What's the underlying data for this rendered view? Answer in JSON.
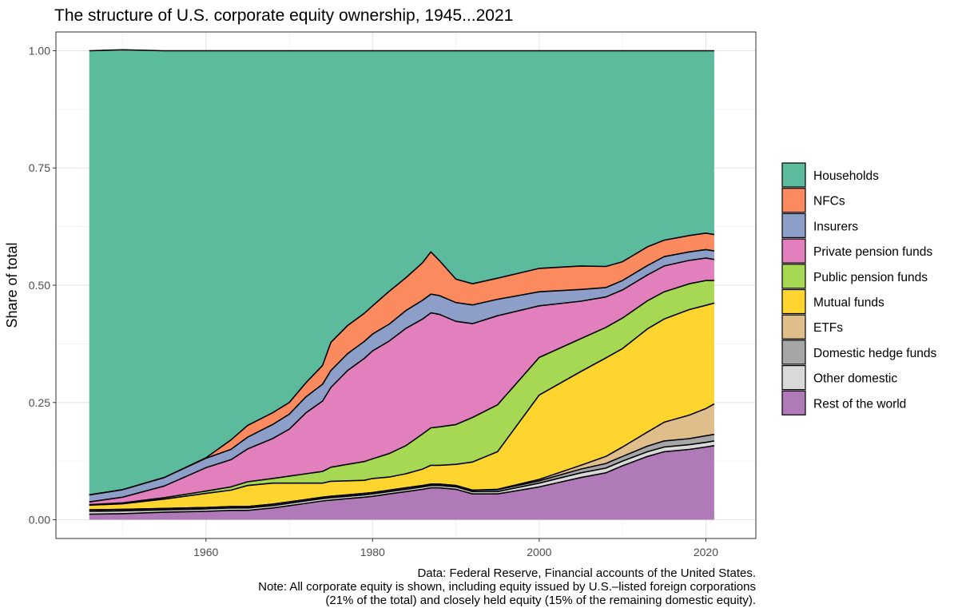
{
  "chart_data": {
    "type": "area",
    "stacked": true,
    "title": "The structure of U.S. corporate equity ownership, 1945...2021",
    "ylabel": "Share of total",
    "xlabel": "",
    "xlim": [
      1942,
      2026
    ],
    "ylim": [
      -0.04,
      1.04
    ],
    "x_ticks": [
      1960,
      1980,
      2000,
      2020
    ],
    "x_tick_labels": [
      "1960",
      "1980",
      "2000",
      "2020"
    ],
    "y_ticks": [
      0,
      0.25,
      0.5,
      0.75,
      1.0
    ],
    "y_tick_labels": [
      "0.00",
      "0.25",
      "0.50",
      "0.75",
      "1.00"
    ],
    "grid": true,
    "legend_position": "right",
    "x": [
      1946,
      1950,
      1955,
      1960,
      1963,
      1965,
      1968,
      1970,
      1972,
      1974,
      1975,
      1977,
      1979,
      1980,
      1982,
      1984,
      1986,
      1987,
      1988,
      1990,
      1992,
      1995,
      2000,
      2005,
      2008,
      2010,
      2013,
      2015,
      2018,
      2020,
      2021
    ],
    "series": [
      {
        "name": "Rest of the world",
        "color": "#b07ab8",
        "values": [
          0.012,
          0.013,
          0.016,
          0.018,
          0.02,
          0.02,
          0.025,
          0.03,
          0.035,
          0.04,
          0.042,
          0.045,
          0.048,
          0.05,
          0.055,
          0.06,
          0.065,
          0.068,
          0.068,
          0.065,
          0.055,
          0.055,
          0.07,
          0.09,
          0.1,
          0.115,
          0.135,
          0.145,
          0.15,
          0.155,
          0.158
        ]
      },
      {
        "name": "Other domestic",
        "color": "#d9d9d9",
        "values": [
          0.006,
          0.006,
          0.005,
          0.005,
          0.005,
          0.005,
          0.005,
          0.005,
          0.005,
          0.005,
          0.005,
          0.005,
          0.005,
          0.005,
          0.005,
          0.005,
          0.005,
          0.005,
          0.005,
          0.005,
          0.005,
          0.005,
          0.008,
          0.01,
          0.01,
          0.01,
          0.01,
          0.01,
          0.01,
          0.01,
          0.01
        ]
      },
      {
        "name": "Domestic hedge funds",
        "color": "#a6a6a6",
        "values": [
          0.003,
          0.003,
          0.003,
          0.003,
          0.003,
          0.003,
          0.003,
          0.003,
          0.003,
          0.003,
          0.003,
          0.003,
          0.003,
          0.003,
          0.003,
          0.003,
          0.003,
          0.003,
          0.003,
          0.003,
          0.003,
          0.004,
          0.005,
          0.008,
          0.01,
          0.01,
          0.012,
          0.013,
          0.013,
          0.014,
          0.014
        ]
      },
      {
        "name": "ETFs",
        "color": "#e0be8c",
        "values": [
          0,
          0,
          0,
          0,
          0,
          0,
          0,
          0,
          0,
          0,
          0,
          0,
          0,
          0,
          0,
          0,
          0,
          0,
          0,
          0,
          0,
          0.001,
          0.003,
          0.008,
          0.015,
          0.02,
          0.03,
          0.04,
          0.05,
          0.058,
          0.065
        ]
      },
      {
        "name": "Mutual funds",
        "color": "#fed52f",
        "values": [
          0.01,
          0.012,
          0.02,
          0.03,
          0.035,
          0.045,
          0.045,
          0.04,
          0.035,
          0.03,
          0.032,
          0.03,
          0.028,
          0.03,
          0.028,
          0.03,
          0.035,
          0.04,
          0.04,
          0.045,
          0.06,
          0.08,
          0.18,
          0.2,
          0.21,
          0.21,
          0.22,
          0.22,
          0.225,
          0.22,
          0.215
        ]
      },
      {
        "name": "Public pension funds",
        "color": "#a6d853",
        "values": [
          0.001,
          0.002,
          0.003,
          0.005,
          0.007,
          0.008,
          0.01,
          0.015,
          0.02,
          0.025,
          0.03,
          0.035,
          0.04,
          0.042,
          0.05,
          0.06,
          0.075,
          0.08,
          0.082,
          0.085,
          0.095,
          0.1,
          0.08,
          0.07,
          0.065,
          0.065,
          0.06,
          0.058,
          0.055,
          0.053,
          0.048
        ]
      },
      {
        "name": "Private pension funds",
        "color": "#e27fbd",
        "values": [
          0.006,
          0.012,
          0.025,
          0.05,
          0.058,
          0.07,
          0.085,
          0.1,
          0.13,
          0.15,
          0.17,
          0.2,
          0.22,
          0.23,
          0.24,
          0.25,
          0.245,
          0.245,
          0.24,
          0.22,
          0.2,
          0.19,
          0.11,
          0.08,
          0.065,
          0.06,
          0.055,
          0.055,
          0.05,
          0.048,
          0.045
        ]
      },
      {
        "name": "Insurers",
        "color": "#8d9ec8",
        "values": [
          0.015,
          0.016,
          0.018,
          0.02,
          0.022,
          0.025,
          0.03,
          0.032,
          0.034,
          0.036,
          0.036,
          0.036,
          0.036,
          0.036,
          0.036,
          0.038,
          0.04,
          0.04,
          0.04,
          0.04,
          0.04,
          0.035,
          0.03,
          0.025,
          0.02,
          0.02,
          0.02,
          0.02,
          0.018,
          0.018,
          0.018
        ]
      },
      {
        "name": "NFCs",
        "color": "#fb8b5f",
        "values": [
          0,
          0,
          0,
          0.001,
          0.02,
          0.025,
          0.025,
          0.025,
          0.03,
          0.04,
          0.06,
          0.06,
          0.06,
          0.06,
          0.07,
          0.07,
          0.08,
          0.09,
          0.075,
          0.05,
          0.045,
          0.045,
          0.05,
          0.05,
          0.045,
          0.04,
          0.04,
          0.035,
          0.035,
          0.035,
          0.035
        ]
      },
      {
        "name": "Households",
        "color": "#5cba9d",
        "values": [
          0.947,
          0.938,
          0.91,
          0.868,
          0.83,
          0.799,
          0.772,
          0.75,
          0.708,
          0.671,
          0.622,
          0.586,
          0.56,
          0.544,
          0.513,
          0.484,
          0.452,
          0.429,
          0.447,
          0.487,
          0.497,
          0.485,
          0.464,
          0.459,
          0.46,
          0.45,
          0.418,
          0.404,
          0.394,
          0.389,
          0.392
        ]
      }
    ],
    "legend_order": [
      "Households",
      "NFCs",
      "Insurers",
      "Private pension funds",
      "Public pension funds",
      "Mutual funds",
      "ETFs",
      "Domestic hedge funds",
      "Other domestic",
      "Rest of the world"
    ],
    "caption": [
      "Data: Federal Reserve, Financial accounts of the United States.",
      "Note: All corporate equity is shown, including equity issued by U.S.–listed foreign corporations",
      "(21% of the total) and closely held equity (15% of the remaining domestic equity)."
    ]
  }
}
